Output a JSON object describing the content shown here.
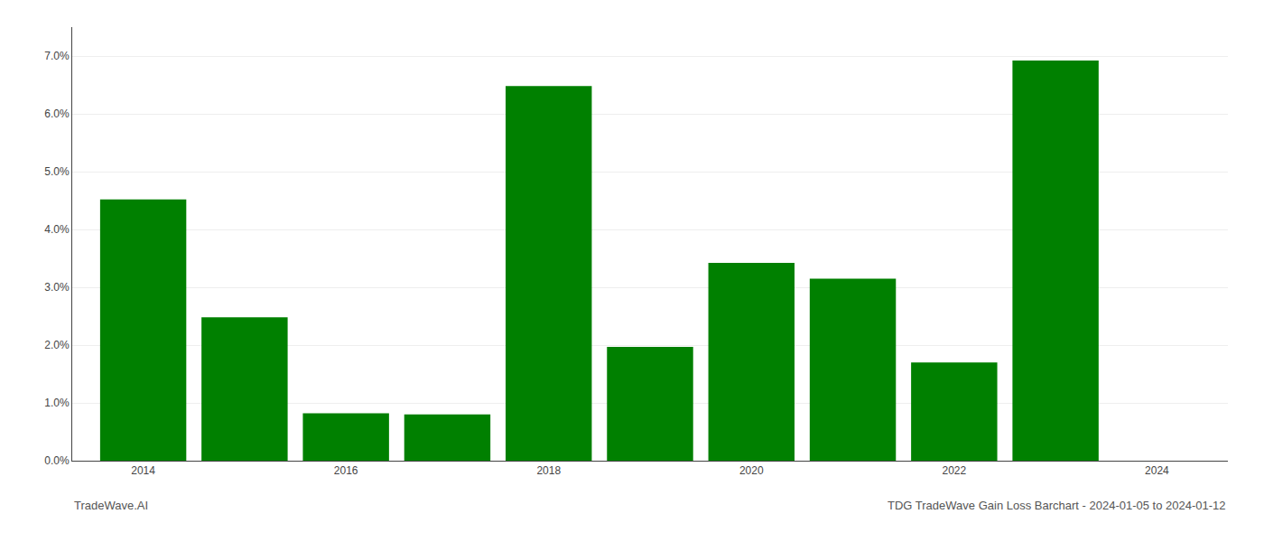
{
  "chart_data": {
    "type": "bar",
    "x": [
      2014,
      2015,
      2016,
      2017,
      2018,
      2019,
      2020,
      2021,
      2022,
      2023
    ],
    "values": [
      0.0452,
      0.0248,
      0.0082,
      0.008,
      0.0648,
      0.0197,
      0.0342,
      0.0315,
      0.017,
      0.0692
    ],
    "color": "#008000",
    "xlim": [
      2013.3,
      2024.7
    ],
    "xticks": [
      2014,
      2016,
      2018,
      2020,
      2022,
      2024
    ],
    "ylim": [
      0,
      0.075
    ],
    "yticks": [
      {
        "value": 0.0,
        "label": "0.0%"
      },
      {
        "value": 0.01,
        "label": "1.0%"
      },
      {
        "value": 0.02,
        "label": "2.0%"
      },
      {
        "value": 0.03,
        "label": "3.0%"
      },
      {
        "value": 0.04,
        "label": "4.0%"
      },
      {
        "value": 0.05,
        "label": "5.0%"
      },
      {
        "value": 0.06,
        "label": "6.0%"
      },
      {
        "value": 0.07,
        "label": "7.0%"
      }
    ],
    "grid": true,
    "annotations": [
      "TradeWave.AI",
      "TDG TradeWave Gain Loss Barchart - 2024-01-05 to 2024-01-12"
    ]
  }
}
